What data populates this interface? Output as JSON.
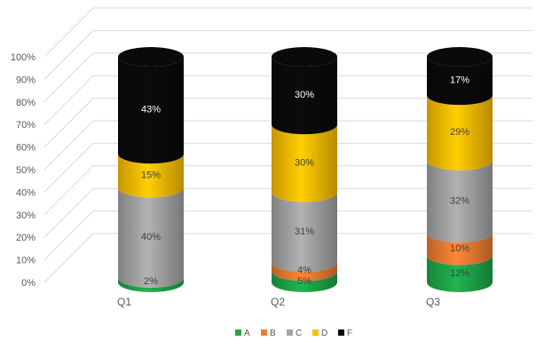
{
  "chart_data": {
    "type": "bar",
    "stacked": true,
    "style": "3d-cylinder",
    "categories": [
      "Q1",
      "Q2",
      "Q3"
    ],
    "series": [
      {
        "name": "A",
        "color": "#1fa84a",
        "values": [
          2,
          5,
          12
        ],
        "labels": [
          "2%",
          "5%",
          "12%"
        ]
      },
      {
        "name": "B",
        "color": "#ed7d31",
        "values": [
          0,
          4,
          10
        ],
        "labels": [
          "",
          "4%",
          "10%"
        ]
      },
      {
        "name": "C",
        "color": "#a5a5a5",
        "values": [
          40,
          31,
          32
        ],
        "labels": [
          "40%",
          "31%",
          "32%"
        ]
      },
      {
        "name": "D",
        "color": "#ffc000",
        "values": [
          15,
          30,
          29
        ],
        "labels": [
          "15%",
          "30%",
          "29%"
        ]
      },
      {
        "name": "F",
        "color": "#0a0a0a",
        "values": [
          43,
          30,
          17
        ],
        "labels": [
          "43%",
          "30%",
          "17%"
        ]
      }
    ],
    "yticks": [
      "0%",
      "10%",
      "20%",
      "30%",
      "40%",
      "50%",
      "60%",
      "70%",
      "80%",
      "90%",
      "100%"
    ],
    "ylim": [
      0,
      100
    ],
    "grid": true,
    "legend_position": "bottom"
  }
}
